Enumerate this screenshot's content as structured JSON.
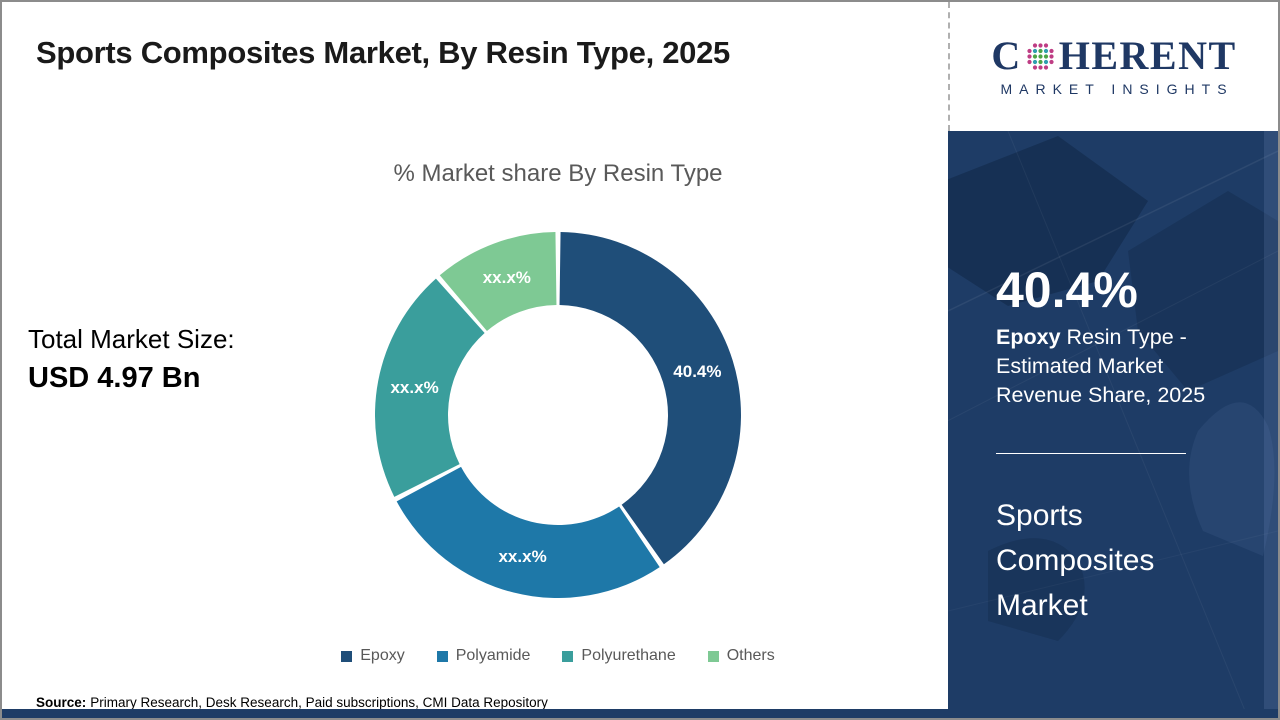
{
  "header": {
    "title": "Sports Composites Market, By Resin Type, 2025"
  },
  "logo": {
    "word_start": "C",
    "word_end": "HERENT",
    "subtitle": "MARKET INSIGHTS",
    "navy": "#1F3864",
    "globe_dot_colors": {
      "green": "#4CA546",
      "teal": "#2E9FAE",
      "magenta": "#BE3D84"
    }
  },
  "main": {
    "total_market_label": "Total Market Size:",
    "total_market_value": "USD 4.97 Bn",
    "source_label": "Source:",
    "source_text": "Primary Research, Desk Research, Paid subscriptions, CMI Data Repository"
  },
  "chart_data": {
    "type": "pie",
    "variant": "donut",
    "title": "% Market share By Resin Type",
    "unit": "%",
    "series": [
      {
        "name": "Epoxy",
        "value": 40.4,
        "label": "40.4%",
        "color": "#1F4E79"
      },
      {
        "name": "Polyamide",
        "value": 27.0,
        "label": "xx.x%",
        "color": "#1E78A8"
      },
      {
        "name": "Polyurethane",
        "value": 21.2,
        "label": "xx.x%",
        "color": "#3A9E9C"
      },
      {
        "name": "Others",
        "value": 11.4,
        "label": "xx.x%",
        "color": "#7EC994"
      }
    ],
    "legend_position": "bottom"
  },
  "side_panel": {
    "background": "#1E3C66",
    "stat_value": "40.4%",
    "desc_bold": "Epoxy",
    "desc_line1_rest": " Resin Type -",
    "desc_line2": "Estimated Market",
    "desc_line3": "Revenue Share, 2025",
    "market_name": "Sports\nComposites\nMarket"
  }
}
